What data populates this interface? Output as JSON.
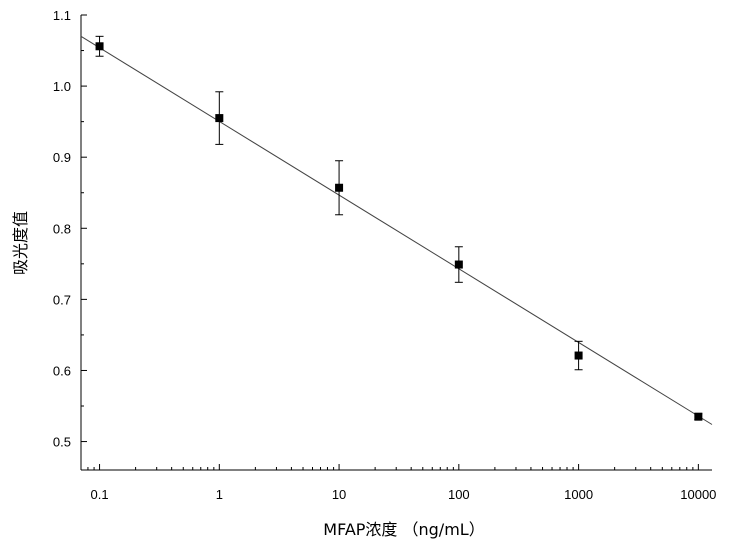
{
  "chart_data": {
    "type": "scatter",
    "title": "",
    "xlabel": "MFAP浓度 （ng/mL）",
    "ylabel": "吸光度值",
    "x_scale": "log",
    "xlim": [
      0.07,
      13000
    ],
    "ylim": [
      0.46,
      1.1
    ],
    "x_ticks": [
      0.1,
      1,
      10,
      100,
      1000,
      10000
    ],
    "x_tick_labels": [
      "0.1",
      "1",
      "10",
      "100",
      "1000",
      "10000"
    ],
    "y_ticks": [
      0.5,
      0.6,
      0.7,
      0.8,
      0.9,
      1.0,
      1.1
    ],
    "y_tick_labels": [
      "0.5",
      "0.6",
      "0.7",
      "0.8",
      "0.9",
      "1.0",
      "1.1"
    ],
    "grid": false,
    "series": [
      {
        "x": [
          0.1,
          1,
          10,
          100,
          1000,
          10000
        ],
        "y": [
          1.056,
          0.955,
          0.857,
          0.749,
          0.621,
          0.535
        ],
        "error": [
          0.014,
          0.037,
          0.038,
          0.025,
          0.02,
          0.004
        ],
        "marker": "square",
        "color": "#000000"
      }
    ],
    "fit_line": {
      "type": "linear-in-log-x",
      "x_range": [
        0.07,
        13000
      ],
      "y_at_start": 1.07,
      "y_at_end": 0.524,
      "color": "#444444"
    }
  }
}
